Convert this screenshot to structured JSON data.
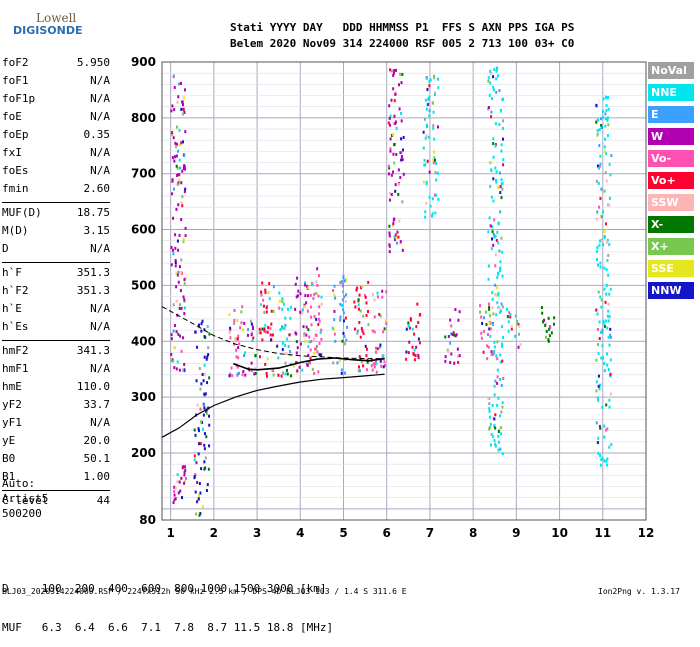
{
  "logo": {
    "line1": "Lowell",
    "line2": "DIGISONDE"
  },
  "header": {
    "line1": "Stati YYYY DAY   DDD HHMMSS P1  FFS S AXN PPS IGA PS",
    "line2": "Belem 2020 Nov09 314 224000 RSF 005 2 713 100 03+ C0"
  },
  "params": [
    {
      "label": "foF2",
      "value": "5.950"
    },
    {
      "label": "foF1",
      "value": "N/A"
    },
    {
      "label": "foF1p",
      "value": "N/A"
    },
    {
      "label": "foE",
      "value": "N/A"
    },
    {
      "label": "foEp",
      "value": "0.35"
    },
    {
      "label": "fxI",
      "value": "N/A"
    },
    {
      "label": "foEs",
      "value": "N/A"
    },
    {
      "label": "fmin",
      "value": "2.60"
    },
    {
      "label": "MUF(D)",
      "value": "18.75"
    },
    {
      "label": "M(D)",
      "value": "3.15"
    },
    {
      "label": "D",
      "value": "N/A"
    },
    {
      "label": "h`F",
      "value": "351.3"
    },
    {
      "label": "h`F2",
      "value": "351.3"
    },
    {
      "label": "h`E",
      "value": "N/A"
    },
    {
      "label": "h`Es",
      "value": "N/A"
    },
    {
      "label": "hmF2",
      "value": "341.3"
    },
    {
      "label": "hmF1",
      "value": "N/A"
    },
    {
      "label": "hmE",
      "value": "110.0"
    },
    {
      "label": "yF2",
      "value": "33.7"
    },
    {
      "label": "yF1",
      "value": "N/A"
    },
    {
      "label": "yE",
      "value": "20.0"
    },
    {
      "label": "B0",
      "value": "50.1"
    },
    {
      "label": "B1",
      "value": "1.00"
    },
    {
      "label": "C-level",
      "value": "44"
    }
  ],
  "auto": {
    "line1": "Auto:",
    "line2": "Artist5",
    "line3": "500200"
  },
  "bottom": {
    "d_row": "D     100  200  400  600  800 1000 1500 3000 [km]",
    "muf_row": "MUF   6.3  6.4  6.6  7.1  7.8  8.7 11.5 18.8 [MHz]"
  },
  "footer": "BLJ03_2020314224000.RSF / 224fx512h 50 kHz 2.5 km / DPS-4D BLJ03 103 / 1.4 S 311.6 E",
  "version": "Ion2Png v. 1.3.17",
  "legend": [
    {
      "label": "NoVal",
      "color": "#a0a0a0"
    },
    {
      "label": "NNE",
      "color": "#00e5ee"
    },
    {
      "label": "E",
      "color": "#3ca0ff"
    },
    {
      "label": "W",
      "color": "#b000b0"
    },
    {
      "label": "Vo-",
      "color": "#ff50b4"
    },
    {
      "label": "Vo+",
      "color": "#ff0030"
    },
    {
      "label": "SSW",
      "color": "#ffb4b4"
    },
    {
      "label": "X-",
      "color": "#007800"
    },
    {
      "label": "X+",
      "color": "#78c850"
    },
    {
      "label": "SSE",
      "color": "#e6e61e"
    },
    {
      "label": "NNW",
      "color": "#1414c8"
    }
  ],
  "chart_data": {
    "type": "scatter",
    "xlim": [
      0.8,
      12.0
    ],
    "ylim": [
      80,
      900
    ],
    "xticks": [
      1,
      2,
      3,
      4,
      5,
      6,
      7,
      8,
      9,
      10,
      11,
      12
    ],
    "yticks": [
      80,
      100,
      200,
      300,
      400,
      500,
      600,
      700,
      800,
      900
    ],
    "yticklabels": [
      80,
      200,
      300,
      400,
      500,
      600,
      700,
      800,
      900
    ],
    "grid": true,
    "profile_curve": [
      [
        0.8,
        228
      ],
      [
        1.2,
        245
      ],
      [
        1.6,
        268
      ],
      [
        2.0,
        285
      ],
      [
        2.5,
        300
      ],
      [
        3.0,
        312
      ],
      [
        3.5,
        320
      ],
      [
        4.0,
        327
      ],
      [
        4.5,
        332
      ],
      [
        5.0,
        335
      ],
      [
        5.5,
        338
      ],
      [
        5.95,
        341
      ]
    ],
    "dashed_curve": [
      [
        0.8,
        462
      ],
      [
        1.2,
        445
      ],
      [
        1.6,
        428
      ],
      [
        2.0,
        410
      ],
      [
        2.5,
        395
      ],
      [
        3.0,
        385
      ],
      [
        3.5,
        378
      ],
      [
        4.0,
        374
      ],
      [
        4.5,
        372
      ],
      [
        5.0,
        370
      ],
      [
        5.5,
        369
      ],
      [
        5.95,
        369
      ]
    ],
    "trace": [
      [
        2.45,
        360
      ],
      [
        2.8,
        350
      ],
      [
        3.0,
        349
      ],
      [
        3.5,
        352
      ],
      [
        4.0,
        362
      ],
      [
        4.4,
        368
      ],
      [
        4.8,
        370
      ],
      [
        5.2,
        367
      ],
      [
        5.6,
        365
      ],
      [
        5.95,
        369
      ]
    ],
    "clusters": [
      {
        "x": 1.15,
        "y0": 350,
        "y1": 880,
        "color": "#b000b0"
      },
      {
        "x": 1.2,
        "y0": 100,
        "y1": 190,
        "color": "#b000b0"
      },
      {
        "x": 1.7,
        "y0": 90,
        "y1": 440,
        "color": "#1414c8"
      },
      {
        "x": 2.5,
        "y0": 340,
        "y1": 470,
        "color": "#ff50b4"
      },
      {
        "x": 2.8,
        "y0": 340,
        "y1": 440,
        "color": "#b000b0"
      },
      {
        "x": 3.2,
        "y0": 340,
        "y1": 510,
        "color": "#ff0030"
      },
      {
        "x": 3.6,
        "y0": 340,
        "y1": 490,
        "color": "#00e5ee"
      },
      {
        "x": 4.0,
        "y0": 345,
        "y1": 520,
        "color": "#b000b0"
      },
      {
        "x": 4.3,
        "y0": 345,
        "y1": 540,
        "color": "#ff50b4"
      },
      {
        "x": 4.9,
        "y0": 345,
        "y1": 520,
        "color": "#3ca0ff"
      },
      {
        "x": 5.4,
        "y0": 345,
        "y1": 510,
        "color": "#ff0030"
      },
      {
        "x": 5.8,
        "y0": 345,
        "y1": 500,
        "color": "#ff50b4"
      },
      {
        "x": 6.6,
        "y0": 360,
        "y1": 470,
        "color": "#ff0030"
      },
      {
        "x": 7.5,
        "y0": 360,
        "y1": 460,
        "color": "#b000b0"
      },
      {
        "x": 8.3,
        "y0": 360,
        "y1": 470,
        "color": "#ff50b4"
      },
      {
        "x": 8.9,
        "y0": 390,
        "y1": 460,
        "color": "#00e5ee"
      },
      {
        "x": 9.7,
        "y0": 400,
        "y1": 470,
        "color": "#007800"
      },
      {
        "x": 6.2,
        "y0": 560,
        "y1": 900,
        "color": "#b000b0"
      },
      {
        "x": 7.0,
        "y0": 620,
        "y1": 880,
        "color": "#00e5ee"
      },
      {
        "x": 8.5,
        "y0": 200,
        "y1": 900,
        "color": "#00e5ee"
      },
      {
        "x": 11.0,
        "y0": 180,
        "y1": 840,
        "color": "#00e5ee"
      }
    ]
  }
}
